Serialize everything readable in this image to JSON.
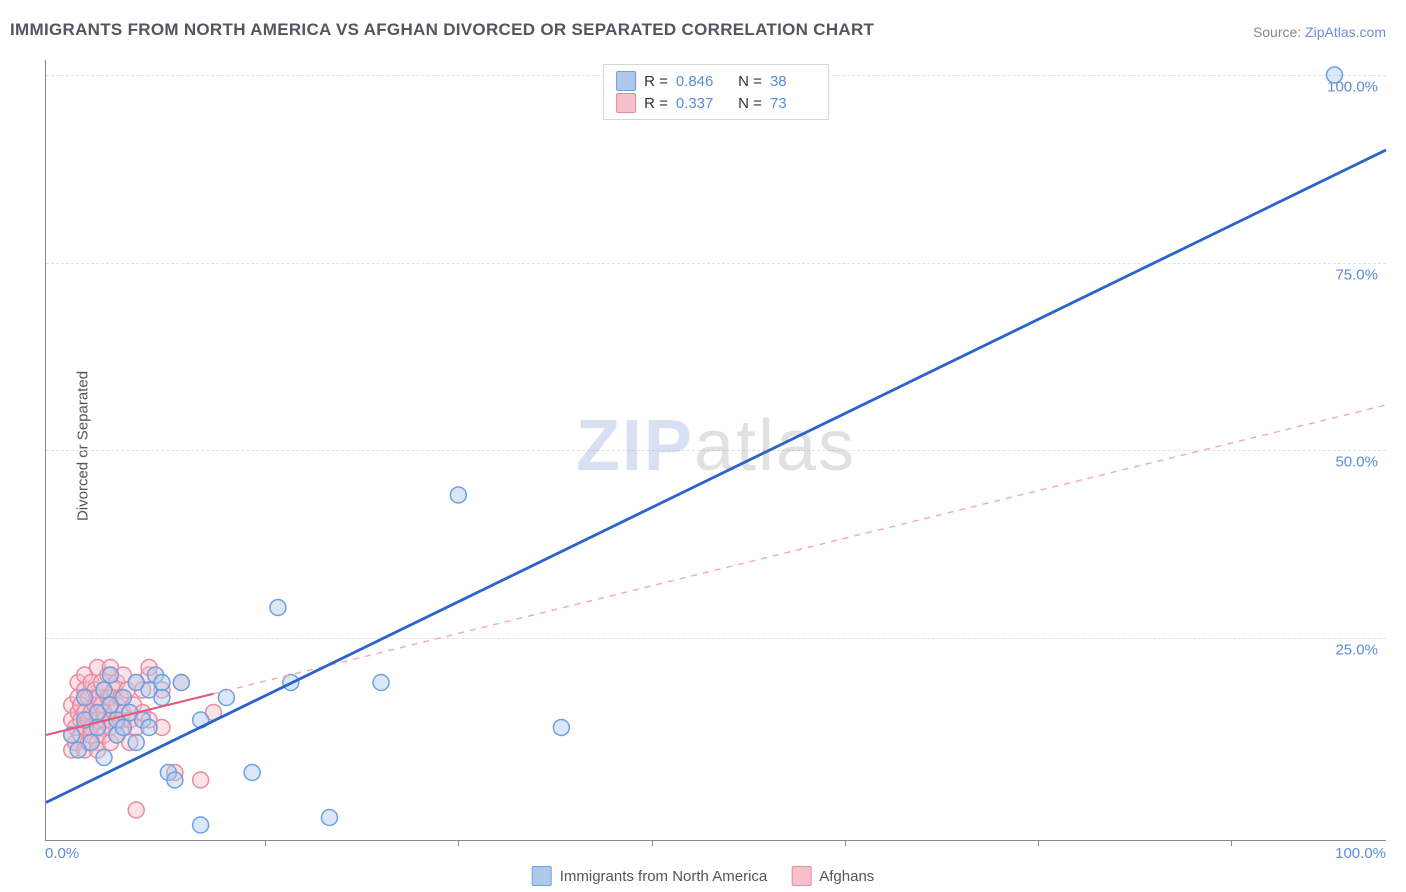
{
  "title": "IMMIGRANTS FROM NORTH AMERICA VS AFGHAN DIVORCED OR SEPARATED CORRELATION CHART",
  "source_prefix": "Source: ",
  "source_name": "ZipAtlas.com",
  "ylabel": "Divorced or Separated",
  "watermark_a": "ZIP",
  "watermark_b": "atlas",
  "chart": {
    "type": "scatter-with-regression",
    "xlim": [
      -2,
      102
    ],
    "ylim": [
      -2,
      102
    ],
    "ytick_values": [
      25,
      50,
      75,
      100
    ],
    "ytick_labels": [
      "25.0%",
      "50.0%",
      "75.0%",
      "100.0%"
    ],
    "xtick_minor_positions_pct": [
      15,
      30,
      45,
      60,
      75,
      90
    ],
    "x_left_label": "0.0%",
    "x_right_label": "100.0%",
    "grid_color": "#e2e2e2",
    "axis_color": "#888888",
    "tick_label_color": "#5a8dd6",
    "marker_radius": 8,
    "marker_stroke_width": 1.5,
    "marker_fill_opacity": 0.45,
    "series": [
      {
        "key": "na",
        "label": "Immigrants from North America",
        "color_fill": "#aec9ec",
        "color_stroke": "#6e9fe0",
        "r": "0.846",
        "n": "38",
        "regression": {
          "x1": -2,
          "y1": 3,
          "x2": 102,
          "y2": 90,
          "stroke": "#2a63c9",
          "width": 2.8,
          "dash": ""
        },
        "points": [
          [
            0,
            12
          ],
          [
            0.5,
            10
          ],
          [
            1,
            14
          ],
          [
            1,
            17
          ],
          [
            1.5,
            11
          ],
          [
            2,
            15
          ],
          [
            2,
            13
          ],
          [
            2.5,
            9
          ],
          [
            2.5,
            18
          ],
          [
            3,
            16
          ],
          [
            3,
            20
          ],
          [
            3.5,
            12
          ],
          [
            3.5,
            14
          ],
          [
            4,
            13
          ],
          [
            4,
            17
          ],
          [
            4.5,
            15
          ],
          [
            5,
            11
          ],
          [
            5,
            19
          ],
          [
            5.5,
            14
          ],
          [
            6,
            18
          ],
          [
            6,
            13
          ],
          [
            6.5,
            20
          ],
          [
            7,
            17
          ],
          [
            7,
            19
          ],
          [
            7.5,
            7
          ],
          [
            8,
            6
          ],
          [
            8.5,
            19
          ],
          [
            10,
            14
          ],
          [
            10,
            0
          ],
          [
            12,
            17
          ],
          [
            14,
            7
          ],
          [
            16,
            29
          ],
          [
            17,
            19
          ],
          [
            20,
            1
          ],
          [
            24,
            19
          ],
          [
            30,
            44
          ],
          [
            38,
            13
          ],
          [
            98,
            100
          ]
        ]
      },
      {
        "key": "afghans",
        "label": "Afghans",
        "color_fill": "#f6bfcb",
        "color_stroke": "#e88ba1",
        "r": "0.337",
        "n": "73",
        "regression_solid": {
          "x1": -2,
          "y1": 12,
          "x2": 11,
          "y2": 17.5,
          "stroke": "#e05a7a",
          "width": 2,
          "dash": ""
        },
        "regression_dashed": {
          "x1": 11,
          "y1": 17.5,
          "x2": 102,
          "y2": 56,
          "stroke": "#f1a8b8",
          "width": 1.4,
          "dash": "6,6"
        },
        "points": [
          [
            0,
            10
          ],
          [
            0,
            12
          ],
          [
            0,
            14
          ],
          [
            0,
            16
          ],
          [
            0.3,
            11
          ],
          [
            0.3,
            13
          ],
          [
            0.5,
            15
          ],
          [
            0.5,
            17
          ],
          [
            0.5,
            19
          ],
          [
            0.7,
            12
          ],
          [
            0.7,
            14
          ],
          [
            0.7,
            16
          ],
          [
            1,
            10
          ],
          [
            1,
            13
          ],
          [
            1,
            15
          ],
          [
            1,
            18
          ],
          [
            1,
            20
          ],
          [
            1.3,
            11
          ],
          [
            1.3,
            14
          ],
          [
            1.3,
            17
          ],
          [
            1.5,
            12
          ],
          [
            1.5,
            15
          ],
          [
            1.5,
            19
          ],
          [
            1.5,
            13
          ],
          [
            1.8,
            16
          ],
          [
            1.8,
            18
          ],
          [
            2,
            11
          ],
          [
            2,
            14
          ],
          [
            2,
            17
          ],
          [
            2,
            21
          ],
          [
            2,
            10
          ],
          [
            2.3,
            13
          ],
          [
            2.3,
            16
          ],
          [
            2.3,
            19
          ],
          [
            2.5,
            12
          ],
          [
            2.5,
            15
          ],
          [
            2.5,
            18
          ],
          [
            2.5,
            14
          ],
          [
            2.8,
            17
          ],
          [
            2.8,
            20
          ],
          [
            3,
            11
          ],
          [
            3,
            14
          ],
          [
            3,
            17
          ],
          [
            3,
            13
          ],
          [
            3,
            21
          ],
          [
            3.3,
            15
          ],
          [
            3.3,
            18
          ],
          [
            3.5,
            12
          ],
          [
            3.5,
            16
          ],
          [
            3.5,
            19
          ],
          [
            3.8,
            14
          ],
          [
            3.8,
            17
          ],
          [
            4,
            13
          ],
          [
            4,
            20
          ],
          [
            4,
            15
          ],
          [
            4.3,
            18
          ],
          [
            4.5,
            14
          ],
          [
            4.5,
            11
          ],
          [
            4.8,
            16
          ],
          [
            5,
            13
          ],
          [
            5,
            19
          ],
          [
            5,
            2
          ],
          [
            5.5,
            15
          ],
          [
            5.5,
            18
          ],
          [
            6,
            14
          ],
          [
            6,
            20
          ],
          [
            6,
            21
          ],
          [
            7,
            18
          ],
          [
            7,
            13
          ],
          [
            8,
            7
          ],
          [
            8.5,
            19
          ],
          [
            10,
            6
          ],
          [
            11,
            15
          ]
        ]
      }
    ]
  },
  "legend_bottom": [
    {
      "label": "Immigrants from North America",
      "fill": "#aec9ec",
      "stroke": "#6e9fe0"
    },
    {
      "label": "Afghans",
      "fill": "#f6bfcb",
      "stroke": "#e88ba1"
    }
  ]
}
